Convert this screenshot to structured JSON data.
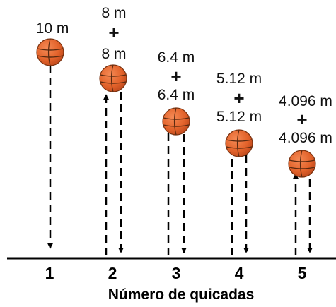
{
  "diagram": {
    "axis_title": "Número de quicadas",
    "bounces": [
      {
        "number": "1",
        "up": "",
        "down": "10 m"
      },
      {
        "number": "2",
        "up": "8 m",
        "down": "8 m"
      },
      {
        "number": "3",
        "up": "6.4 m",
        "down": "6.4 m"
      },
      {
        "number": "4",
        "up": "5.12 m",
        "down": "5.12 m"
      },
      {
        "number": "5",
        "up": "4.096 m",
        "down": "4.096 m"
      }
    ],
    "plus_sign": "+",
    "colors": {
      "ball": "#e2622a",
      "ball_shadow": "#c1461a",
      "ball_seams": "#5a2a10",
      "lines": "#000000"
    }
  }
}
